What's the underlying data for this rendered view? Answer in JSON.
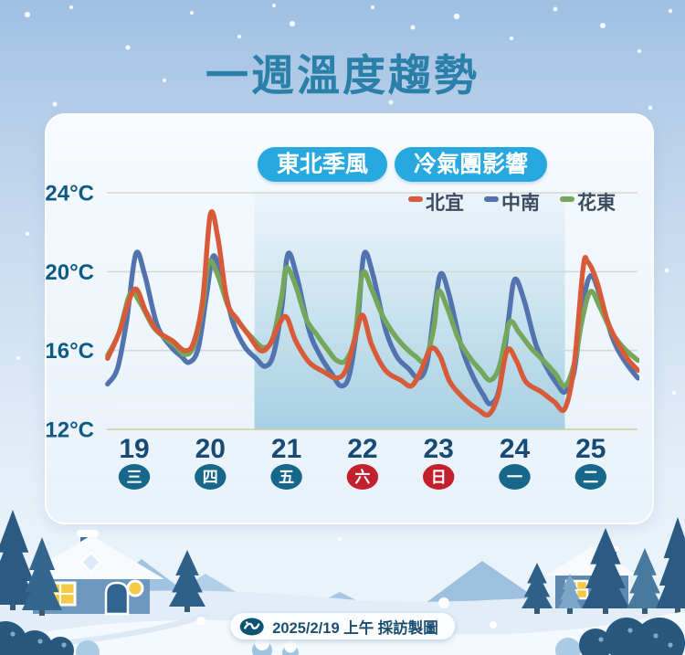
{
  "title": "一週溫度趨勢",
  "badges": [
    {
      "label": "東北季風"
    },
    {
      "label": "冷氣團影響"
    }
  ],
  "legend": [
    {
      "label": "北宜",
      "color": "#d75b39"
    },
    {
      "label": "中南",
      "color": "#5273ae"
    },
    {
      "label": "花東",
      "color": "#74a75c"
    }
  ],
  "footer": {
    "credit": "2025/2/19 上午 採訪製圖",
    "logo_icon": "wave-logo-icon"
  },
  "colors": {
    "title_teal": "#2a80a8",
    "badge_cyan": "#27a9e0",
    "teal_circle": "#17678b",
    "red_circle": "#c2202e",
    "gridline": "#d3dad6",
    "baseline": "#c6cda3",
    "shade_blue": "#a4cfe2"
  },
  "chart_data": {
    "type": "line",
    "title": "一週溫度趨勢",
    "ylabel": "°C",
    "ylim": [
      12,
      24
    ],
    "y_ticks": [
      {
        "value": 24,
        "label": "24°C"
      },
      {
        "value": 20,
        "label": "20°C"
      },
      {
        "value": 16,
        "label": "16°C"
      },
      {
        "value": 12,
        "label": "12°C"
      }
    ],
    "x_range": [
      18.65,
      25.62
    ],
    "days": [
      {
        "date": "19",
        "weekday": "三",
        "accent": "teal"
      },
      {
        "date": "20",
        "weekday": "四",
        "accent": "teal"
      },
      {
        "date": "21",
        "weekday": "五",
        "accent": "teal"
      },
      {
        "date": "22",
        "weekday": "六",
        "accent": "red"
      },
      {
        "date": "23",
        "weekday": "日",
        "accent": "red"
      },
      {
        "date": "24",
        "weekday": "一",
        "accent": "teal"
      },
      {
        "date": "25",
        "weekday": "二",
        "accent": "teal"
      }
    ],
    "shaded_region": {
      "from_day": 20.58,
      "to_day": 24.66
    },
    "grid": true,
    "legend_position": "top-right",
    "series": [
      {
        "name": "中南",
        "color": "#5273ae",
        "points": [
          [
            18.65,
            14.3
          ],
          [
            18.78,
            15.1
          ],
          [
            18.9,
            17.5
          ],
          [
            19.02,
            20.9
          ],
          [
            19.14,
            19.8
          ],
          [
            19.3,
            17.3
          ],
          [
            19.48,
            16.2
          ],
          [
            19.62,
            15.7
          ],
          [
            19.72,
            15.4
          ],
          [
            19.84,
            16.1
          ],
          [
            19.95,
            18.8
          ],
          [
            20.04,
            20.8
          ],
          [
            20.16,
            19.5
          ],
          [
            20.3,
            17.4
          ],
          [
            20.45,
            16.2
          ],
          [
            20.6,
            15.6
          ],
          [
            20.72,
            15.2
          ],
          [
            20.83,
            15.8
          ],
          [
            20.94,
            18.2
          ],
          [
            21.02,
            20.9
          ],
          [
            21.14,
            19.7
          ],
          [
            21.3,
            17.0
          ],
          [
            21.45,
            15.7
          ],
          [
            21.6,
            14.8
          ],
          [
            21.72,
            14.2
          ],
          [
            21.83,
            14.8
          ],
          [
            21.94,
            17.6
          ],
          [
            22.02,
            20.9
          ],
          [
            22.14,
            19.8
          ],
          [
            22.3,
            17.1
          ],
          [
            22.45,
            15.7
          ],
          [
            22.6,
            15.1
          ],
          [
            22.74,
            14.6
          ],
          [
            22.85,
            15.4
          ],
          [
            22.95,
            18.2
          ],
          [
            23.03,
            19.9
          ],
          [
            23.14,
            18.8
          ],
          [
            23.3,
            16.2
          ],
          [
            23.45,
            14.7
          ],
          [
            23.58,
            13.8
          ],
          [
            23.68,
            13.3
          ],
          [
            23.8,
            14.1
          ],
          [
            23.92,
            17.6
          ],
          [
            24.0,
            19.6
          ],
          [
            24.12,
            18.6
          ],
          [
            24.28,
            16.3
          ],
          [
            24.44,
            15.0
          ],
          [
            24.56,
            14.3
          ],
          [
            24.66,
            13.9
          ],
          [
            24.78,
            14.9
          ],
          [
            24.9,
            18.4
          ],
          [
            25.0,
            19.8
          ],
          [
            25.12,
            18.8
          ],
          [
            25.28,
            16.7
          ],
          [
            25.44,
            15.5
          ],
          [
            25.62,
            14.6
          ]
        ]
      },
      {
        "name": "花東",
        "color": "#74a75c",
        "points": [
          [
            18.65,
            15.75
          ],
          [
            18.8,
            16.9
          ],
          [
            18.95,
            18.9
          ],
          [
            19.08,
            18.4
          ],
          [
            19.25,
            17.2
          ],
          [
            19.42,
            16.6
          ],
          [
            19.55,
            16.2
          ],
          [
            19.66,
            15.8
          ],
          [
            19.78,
            16.2
          ],
          [
            19.9,
            18.3
          ],
          [
            19.98,
            20.5
          ],
          [
            20.1,
            19.8
          ],
          [
            20.24,
            18.2
          ],
          [
            20.4,
            17.3
          ],
          [
            20.56,
            16.6
          ],
          [
            20.7,
            16.15
          ],
          [
            20.82,
            16.6
          ],
          [
            20.94,
            18.8
          ],
          [
            21.0,
            20.2
          ],
          [
            21.12,
            19.3
          ],
          [
            21.26,
            17.6
          ],
          [
            21.4,
            16.8
          ],
          [
            21.55,
            16.0
          ],
          [
            21.66,
            15.5
          ],
          [
            21.78,
            15.5
          ],
          [
            21.9,
            16.7
          ],
          [
            22.0,
            19.9
          ],
          [
            22.12,
            19.1
          ],
          [
            22.26,
            17.8
          ],
          [
            22.4,
            16.9
          ],
          [
            22.55,
            16.2
          ],
          [
            22.7,
            15.7
          ],
          [
            22.82,
            15.5
          ],
          [
            22.94,
            17.2
          ],
          [
            23.0,
            19.0
          ],
          [
            23.12,
            18.1
          ],
          [
            23.26,
            16.6
          ],
          [
            23.4,
            15.7
          ],
          [
            23.55,
            15.0
          ],
          [
            23.68,
            14.5
          ],
          [
            23.8,
            15.2
          ],
          [
            23.93,
            17.4
          ],
          [
            24.06,
            16.9
          ],
          [
            24.22,
            16.1
          ],
          [
            24.4,
            15.4
          ],
          [
            24.54,
            14.8
          ],
          [
            24.66,
            14.2
          ],
          [
            24.78,
            15.3
          ],
          [
            24.9,
            17.8
          ],
          [
            25.0,
            19.0
          ],
          [
            25.12,
            18.2
          ],
          [
            25.28,
            16.9
          ],
          [
            25.44,
            16.1
          ],
          [
            25.62,
            15.5
          ]
        ]
      },
      {
        "name": "北宜",
        "color": "#d75b39",
        "points": [
          [
            18.65,
            15.6
          ],
          [
            18.8,
            16.9
          ],
          [
            19.0,
            19.1
          ],
          [
            19.15,
            18.0
          ],
          [
            19.3,
            17.0
          ],
          [
            19.5,
            16.5
          ],
          [
            19.66,
            16.0
          ],
          [
            19.78,
            16.4
          ],
          [
            19.9,
            18.6
          ],
          [
            20.0,
            22.9
          ],
          [
            20.1,
            21.7
          ],
          [
            20.22,
            18.5
          ],
          [
            20.35,
            17.6
          ],
          [
            20.5,
            16.8
          ],
          [
            20.66,
            16.0
          ],
          [
            20.78,
            16.3
          ],
          [
            20.9,
            17.3
          ],
          [
            21.0,
            17.7
          ],
          [
            21.12,
            16.5
          ],
          [
            21.3,
            15.4
          ],
          [
            21.5,
            14.9
          ],
          [
            21.66,
            14.6
          ],
          [
            21.78,
            15.0
          ],
          [
            21.9,
            16.6
          ],
          [
            22.0,
            17.8
          ],
          [
            22.12,
            16.3
          ],
          [
            22.3,
            15.0
          ],
          [
            22.5,
            14.5
          ],
          [
            22.64,
            14.2
          ],
          [
            22.76,
            14.9
          ],
          [
            22.9,
            16.1
          ],
          [
            23.02,
            15.7
          ],
          [
            23.15,
            14.4
          ],
          [
            23.35,
            13.5
          ],
          [
            23.52,
            13.0
          ],
          [
            23.66,
            12.75
          ],
          [
            23.78,
            13.7
          ],
          [
            23.9,
            16.0
          ],
          [
            24.02,
            15.5
          ],
          [
            24.15,
            14.4
          ],
          [
            24.35,
            13.9
          ],
          [
            24.52,
            13.4
          ],
          [
            24.66,
            13.05
          ],
          [
            24.78,
            15.2
          ],
          [
            24.9,
            20.2
          ],
          [
            24.96,
            20.5
          ],
          [
            25.08,
            19.5
          ],
          [
            25.22,
            17.5
          ],
          [
            25.38,
            16.2
          ],
          [
            25.5,
            15.5
          ],
          [
            25.62,
            15.0
          ]
        ]
      }
    ]
  }
}
